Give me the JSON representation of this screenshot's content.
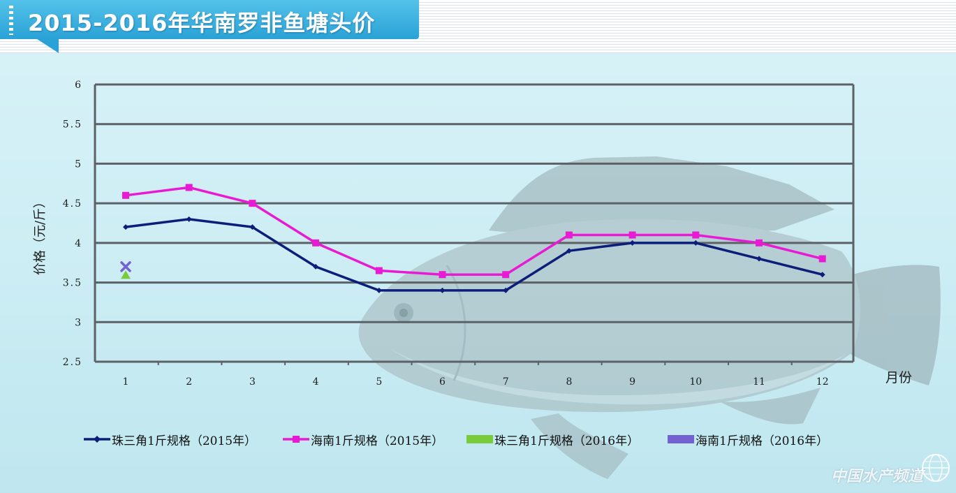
{
  "title": "2015-2016年华南罗非鱼塘头价",
  "watermark": "中国水产频道",
  "colors": {
    "title_tab": "#2aa2d6",
    "series_prd_2015": "#0c1e7a",
    "series_hainan_2015": "#e81ad4",
    "series_prd_2016": "#7acb3c",
    "series_hainan_2016": "#7462d2",
    "grid": "#5b6166"
  },
  "icons": {
    "watermark_logo": "globe-icon",
    "fish": "tilapia-fish-illustration"
  },
  "chart_data": {
    "type": "line",
    "title": "2015-2016年华南罗非鱼塘头价",
    "xlabel": "月份",
    "ylabel": "价格（元/斤）",
    "categories": [
      "1",
      "2",
      "3",
      "4",
      "5",
      "6",
      "7",
      "8",
      "9",
      "10",
      "11",
      "12"
    ],
    "ylim": [
      2.5,
      6
    ],
    "yticks": [
      "2.5",
      "3",
      "3.5",
      "4",
      "4.5",
      "5",
      "5.5",
      "6"
    ],
    "grid": "horizontal",
    "legend_position": "bottom",
    "series": [
      {
        "name": "珠三角1斤规格（2015年）",
        "color": "#0c1e7a",
        "marker": "diamond",
        "values": [
          4.2,
          4.3,
          4.2,
          3.7,
          3.4,
          3.4,
          3.4,
          3.9,
          4.0,
          4.0,
          3.8,
          3.6
        ]
      },
      {
        "name": "海南1斤规格（2015年）",
        "color": "#e81ad4",
        "marker": "square",
        "values": [
          4.6,
          4.7,
          4.5,
          4.0,
          3.65,
          3.6,
          3.6,
          4.1,
          4.1,
          4.1,
          4.0,
          3.8
        ]
      },
      {
        "name": "珠三角1斤规格（2016年）",
        "color": "#7acb3c",
        "marker": "triangle",
        "values": [
          3.6,
          null,
          null,
          null,
          null,
          null,
          null,
          null,
          null,
          null,
          null,
          null
        ]
      },
      {
        "name": "海南1斤规格（2016年）",
        "color": "#7462d2",
        "marker": "x",
        "values": [
          3.7,
          null,
          null,
          null,
          null,
          null,
          null,
          null,
          null,
          null,
          null,
          null
        ]
      }
    ]
  }
}
